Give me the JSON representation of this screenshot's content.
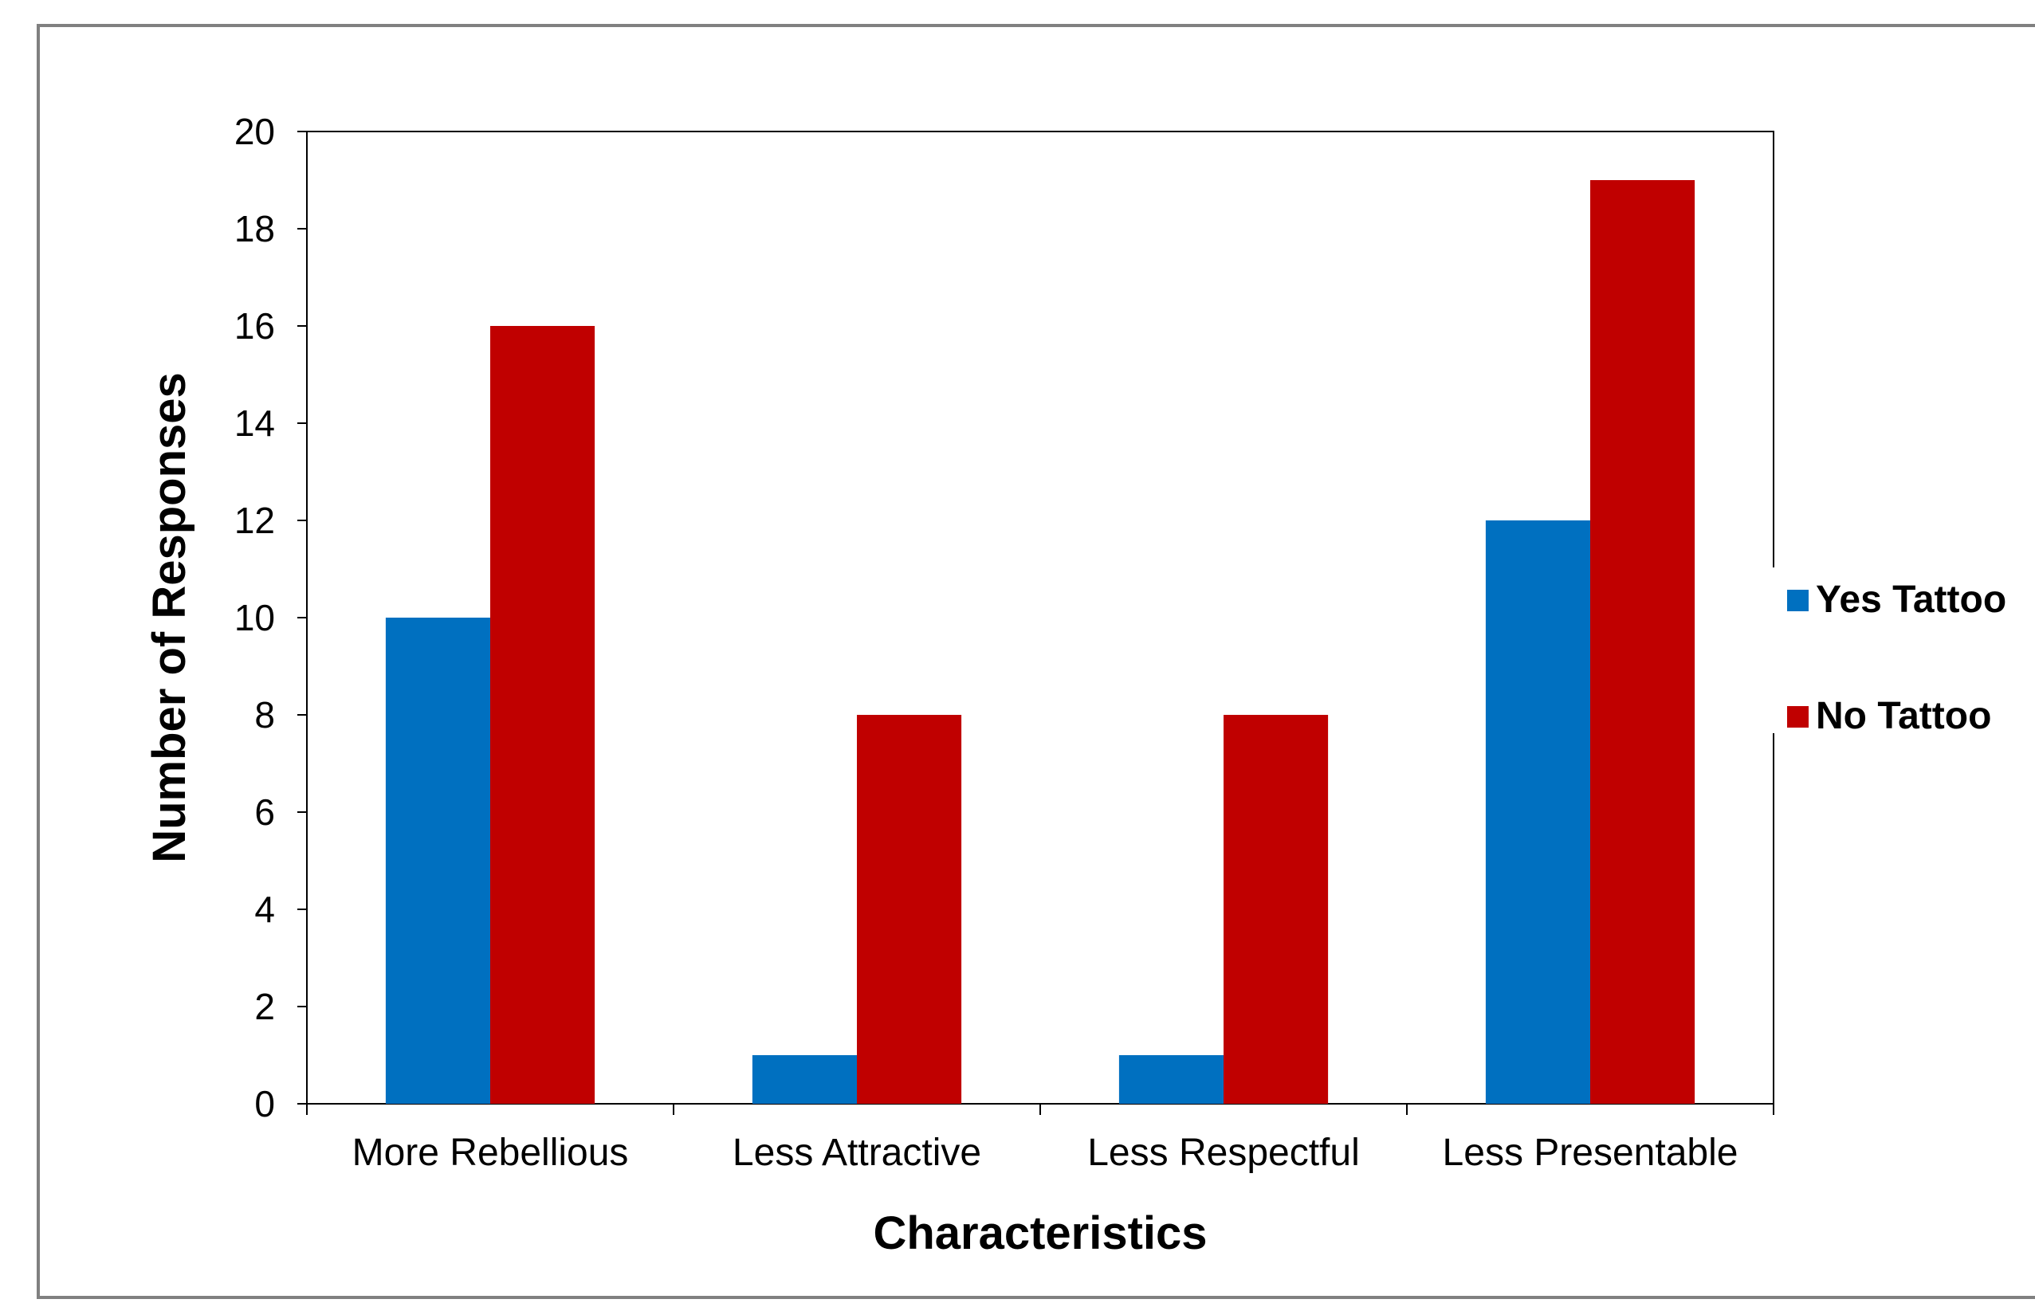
{
  "chart_data": {
    "type": "bar",
    "title": "",
    "xlabel": "Characteristics",
    "ylabel": "Number of Responses",
    "categories": [
      "More Rebellious",
      "Less Attractive",
      "Less Respectful",
      "Less Presentable"
    ],
    "series": [
      {
        "name": "Yes Tattoo",
        "color": "#0070C0",
        "values": [
          10,
          1,
          1,
          12
        ]
      },
      {
        "name": "No Tattoo",
        "color": "#C00000",
        "values": [
          16,
          8,
          8,
          19
        ]
      }
    ],
    "ylim": [
      0,
      20
    ],
    "yticks": [
      "0",
      "2",
      "4",
      "6",
      "8",
      "10",
      "12",
      "14",
      "16",
      "18",
      "20"
    ],
    "grid": false,
    "legend_position": "right"
  }
}
